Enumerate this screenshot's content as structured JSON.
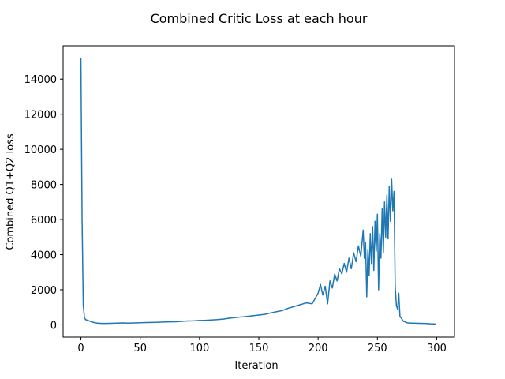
{
  "chart_data": {
    "type": "line",
    "title": "Combined Critic Loss at each hour",
    "xlabel": "Iteration",
    "ylabel": "Combined Q1+Q2 loss",
    "xlim": [
      -15,
      315
    ],
    "ylim": [
      -700,
      15900
    ],
    "xticks": [
      0,
      50,
      100,
      150,
      200,
      250,
      300
    ],
    "yticks": [
      0,
      2000,
      4000,
      6000,
      8000,
      10000,
      12000,
      14000
    ],
    "grid": false,
    "color": "#1f77b4",
    "series": [
      {
        "x": [
          0,
          1,
          2,
          3,
          4,
          6,
          8,
          10,
          12,
          14,
          16,
          18,
          20,
          25,
          30,
          35,
          40,
          45,
          50,
          55,
          60,
          65,
          70,
          75,
          80,
          85,
          90,
          95,
          100,
          105,
          110,
          115,
          120,
          125,
          130,
          135,
          140,
          145,
          150,
          155,
          160,
          165,
          170,
          175,
          180,
          185,
          190,
          195,
          200,
          202,
          204,
          206,
          208,
          210,
          212,
          214,
          216,
          218,
          220,
          222,
          224,
          226,
          228,
          230,
          232,
          234,
          236,
          238,
          239,
          240,
          241,
          242,
          243,
          244,
          245,
          246,
          247,
          248,
          249,
          250,
          251,
          252,
          253,
          254,
          255,
          256,
          257,
          258,
          259,
          260,
          261,
          262,
          263,
          264,
          265,
          266,
          267,
          268,
          269,
          270,
          271,
          272,
          273,
          274,
          275,
          276,
          278,
          280,
          285,
          290,
          295,
          299
        ],
        "y": [
          15200,
          6000,
          1100,
          400,
          300,
          250,
          200,
          150,
          120,
          100,
          90,
          80,
          80,
          90,
          100,
          110,
          100,
          110,
          120,
          130,
          140,
          150,
          160,
          170,
          180,
          200,
          220,
          230,
          250,
          260,
          280,
          300,
          330,
          380,
          420,
          450,
          480,
          520,
          560,
          600,
          680,
          750,
          820,
          950,
          1050,
          1150,
          1250,
          1200,
          1800,
          2300,
          1700,
          2200,
          1200,
          2500,
          2100,
          2900,
          2500,
          3200,
          2900,
          3500,
          3000,
          3800,
          3200,
          4100,
          3600,
          4500,
          3900,
          5400,
          3800,
          4700,
          1600,
          4300,
          2800,
          5200,
          3500,
          5600,
          3100,
          5900,
          4200,
          6300,
          2000,
          5200,
          3800,
          6600,
          4100,
          7000,
          5000,
          7400,
          4900,
          7900,
          5900,
          8300,
          6500,
          7600,
          2200,
          1100,
          900,
          1800,
          500,
          400,
          300,
          200,
          180,
          150,
          120,
          110,
          100,
          100,
          90,
          80,
          60,
          50
        ]
      }
    ]
  }
}
